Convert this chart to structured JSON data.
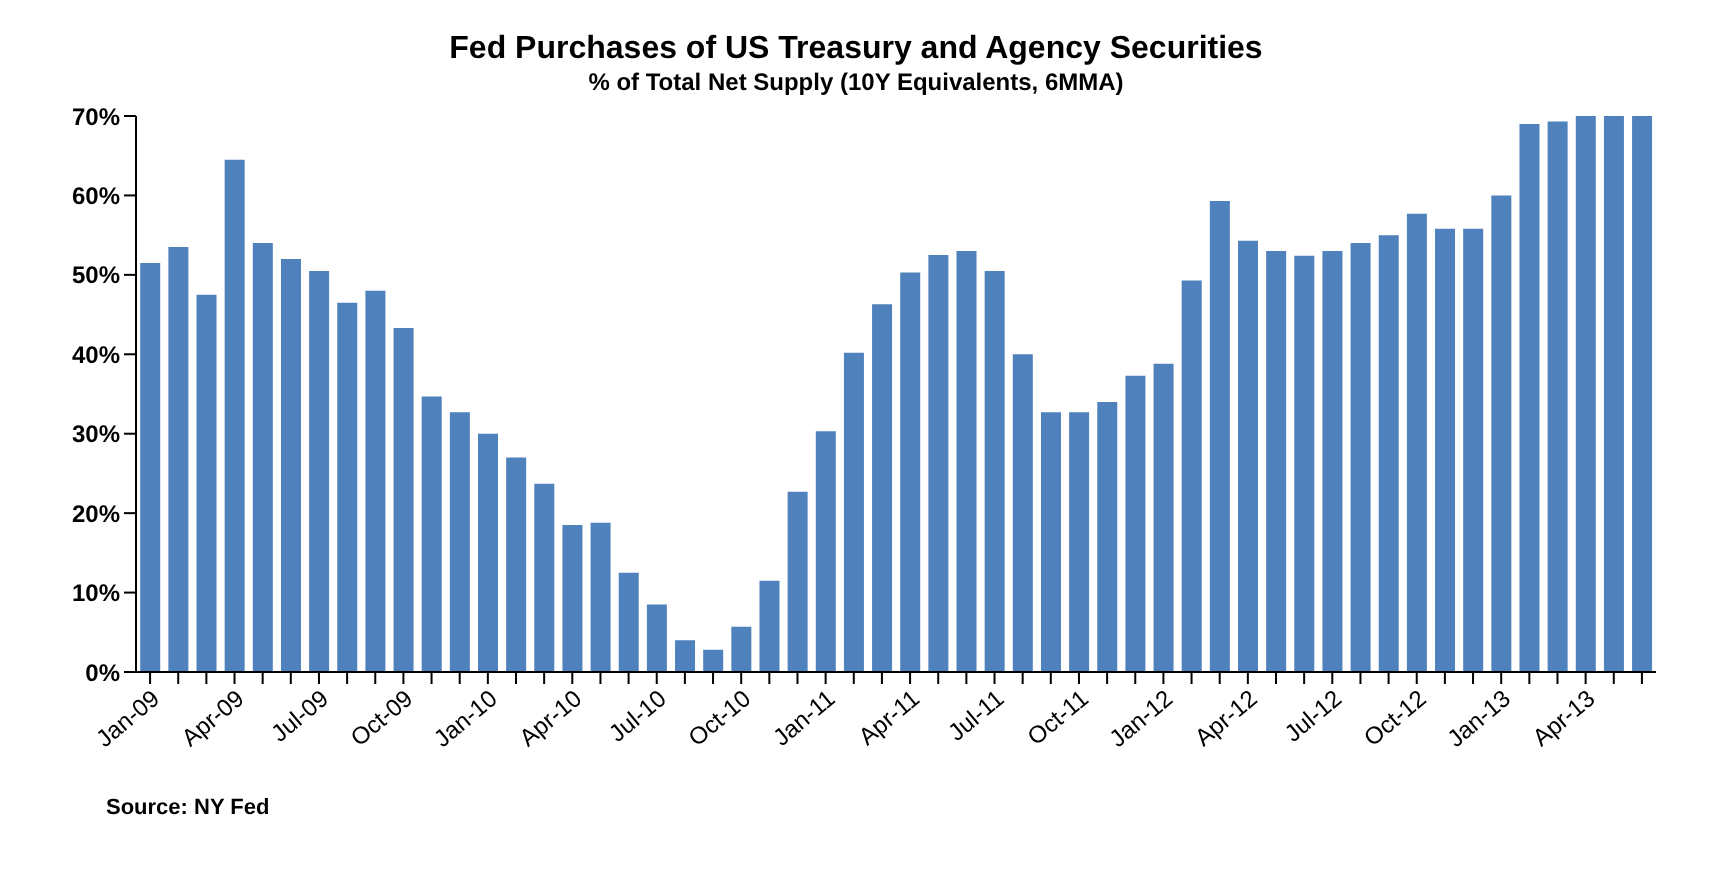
{
  "chart_data": {
    "type": "bar",
    "title": "Fed Purchases of US Treasury and Agency Securities",
    "subtitle": "% of Total Net Supply (10Y Equivalents, 6MMA)",
    "categories": [
      "Jan-09",
      null,
      null,
      "Apr-09",
      null,
      null,
      "Jul-09",
      null,
      null,
      "Oct-09",
      null,
      null,
      "Jan-10",
      null,
      null,
      "Apr-10",
      null,
      null,
      "Jul-10",
      null,
      null,
      "Oct-10",
      null,
      null,
      "Jan-11",
      null,
      null,
      "Apr-11",
      null,
      null,
      "Jul-11",
      null,
      null,
      "Oct-11",
      null,
      null,
      "Jan-12",
      null,
      null,
      "Apr-12",
      null,
      null,
      "Jul-12",
      null,
      null,
      "Oct-12",
      null,
      null,
      "Jan-13",
      null,
      null,
      "Apr-13",
      null,
      null
    ],
    "values": [
      51.5,
      53.5,
      47.5,
      64.5,
      54,
      52,
      50.5,
      46.5,
      48,
      43.3,
      34.7,
      32.7,
      30,
      27,
      23.7,
      18.5,
      18.8,
      12.5,
      8.5,
      4,
      2.8,
      5.7,
      11.5,
      22.7,
      30.3,
      40.2,
      46.3,
      50.3,
      52.5,
      53,
      50.5,
      40,
      32.7,
      32.7,
      34,
      37.3,
      38.8,
      49.3,
      59.3,
      54.3,
      53,
      52.4,
      53,
      54,
      55,
      57.7,
      55.8,
      55.8,
      60,
      69,
      69.3,
      70,
      70,
      70
    ],
    "color": "#4f81bd",
    "ylim": [
      0,
      70
    ],
    "yticks": [
      {
        "value": 0,
        "label": "0%"
      },
      {
        "value": 10,
        "label": "10%"
      },
      {
        "value": 20,
        "label": "20%"
      },
      {
        "value": 30,
        "label": "30%"
      },
      {
        "value": 40,
        "label": "40%"
      },
      {
        "value": 50,
        "label": "50%"
      },
      {
        "value": 60,
        "label": "60%"
      },
      {
        "value": 70,
        "label": "70%"
      }
    ],
    "annotations": [
      "Source: NY Fed"
    ]
  }
}
